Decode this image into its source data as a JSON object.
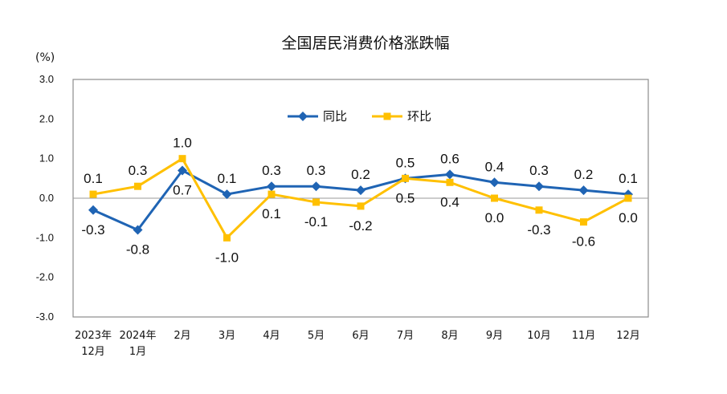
{
  "chart_data": {
    "type": "line",
    "title": "全国居民消费价格涨跌幅",
    "unit_label": "(%)",
    "ylim": [
      -3.0,
      3.0
    ],
    "y_ticks": [
      "3.0",
      "2.0",
      "1.0",
      "0.0",
      "-1.0",
      "-2.0",
      "-3.0"
    ],
    "y_tick_values": [
      3.0,
      2.0,
      1.0,
      0.0,
      -1.0,
      -2.0,
      -3.0
    ],
    "categories": [
      [
        "2023年",
        "12月"
      ],
      [
        "2024年",
        "1月"
      ],
      [
        "2月"
      ],
      [
        "3月"
      ],
      [
        "4月"
      ],
      [
        "5月"
      ],
      [
        "6月"
      ],
      [
        "7月"
      ],
      [
        "8月"
      ],
      [
        "9月"
      ],
      [
        "10月"
      ],
      [
        "11月"
      ],
      [
        "12月"
      ]
    ],
    "series": [
      {
        "name": "同比",
        "color": "#1f64b4",
        "marker": "diamond",
        "values": [
          -0.3,
          -0.8,
          0.7,
          0.1,
          0.3,
          0.3,
          0.2,
          0.5,
          0.6,
          0.4,
          0.3,
          0.2,
          0.1
        ],
        "labels": [
          "-0.3",
          "-0.8",
          "0.7",
          "0.1",
          "0.3",
          "0.3",
          "0.2",
          "0.5",
          "0.6",
          "0.4",
          "0.3",
          "0.2",
          "0.1"
        ],
        "label_pos": [
          "below",
          "below",
          "below",
          "above",
          "above",
          "above",
          "above",
          "above",
          "above",
          "above",
          "above",
          "above",
          "above"
        ]
      },
      {
        "name": "环比",
        "color": "#ffc000",
        "marker": "square",
        "values": [
          0.1,
          0.3,
          1.0,
          -1.0,
          0.1,
          -0.1,
          -0.2,
          0.5,
          0.4,
          0.0,
          -0.3,
          -0.6,
          0.0
        ],
        "labels": [
          "0.1",
          "0.3",
          "1.0",
          "-1.0",
          "0.1",
          "-0.1",
          "-0.2",
          "0.5",
          "0.4",
          "0.0",
          "-0.3",
          "-0.6",
          "0.0"
        ],
        "label_pos": [
          "above",
          "above",
          "above",
          "below",
          "below",
          "below",
          "below",
          "below",
          "below",
          "below",
          "below",
          "below",
          "below"
        ]
      }
    ],
    "legend": {
      "position": "top-center",
      "entries": [
        "同比",
        "环比"
      ]
    },
    "grid": false
  }
}
